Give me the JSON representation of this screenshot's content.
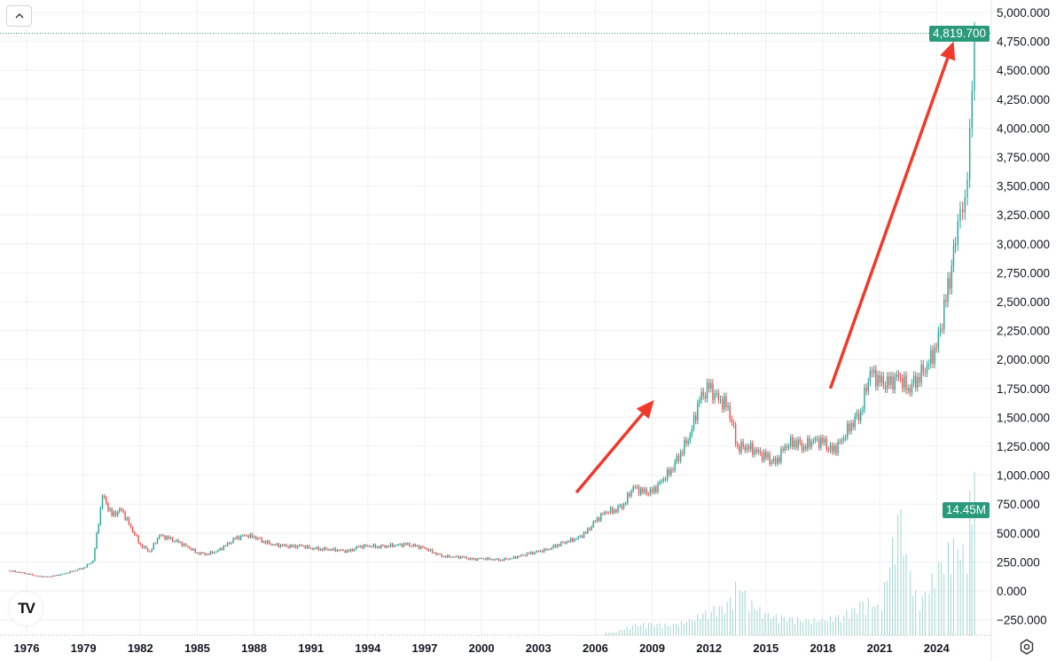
{
  "chart_data": {
    "type": "candlestick",
    "title": "",
    "xlabel": "",
    "ylabel": "",
    "x_ticks": [
      "1976",
      "1979",
      "1982",
      "1985",
      "1988",
      "1991",
      "1994",
      "1997",
      "2000",
      "2003",
      "2006",
      "2009",
      "2012",
      "2015",
      "2018",
      "2021",
      "2024"
    ],
    "y_ticks": [
      "5,000.000",
      "4,750.000",
      "4,500.000",
      "4,250.000",
      "4,000.000",
      "3,750.000",
      "3,500.000",
      "3,250.000",
      "3,000.000",
      "2,750.000",
      "2,500.000",
      "2,250.000",
      "2,000.000",
      "1,750.000",
      "1,500.000",
      "1,250.000",
      "1,000.000",
      "750.000",
      "500.000",
      "250.000",
      "0.000",
      "−250.000"
    ],
    "y_tick_values": [
      5000000,
      4750000,
      4500000,
      4250000,
      4000000,
      3750000,
      3500000,
      3250000,
      3000000,
      2750000,
      2500000,
      2250000,
      2000000,
      1750000,
      1500000,
      1250000,
      1000000,
      750000,
      500000,
      250000,
      0,
      -250000
    ],
    "ylim": [
      -300000,
      5100000
    ],
    "xlim": [
      1974.6,
      2026.6
    ],
    "grid": true,
    "last_price_label": "4,819.700",
    "last_price": 4819700,
    "volume_label": "14.45M",
    "colors": {
      "up": "#26a69a",
      "down": "#ef5350",
      "price_tag": "#2a9a7c",
      "volume": "#9fd6cf",
      "arrow": "#f0392b"
    },
    "series": [
      {
        "x": 1975.0,
        "close": 176000
      },
      {
        "x": 1975.5,
        "close": 165000
      },
      {
        "x": 1976.0,
        "close": 150000
      },
      {
        "x": 1976.5,
        "close": 130000
      },
      {
        "x": 1977.0,
        "close": 120000
      },
      {
        "x": 1977.5,
        "close": 130000
      },
      {
        "x": 1978.0,
        "close": 150000
      },
      {
        "x": 1978.5,
        "close": 175000
      },
      {
        "x": 1979.0,
        "close": 200000
      },
      {
        "x": 1979.5,
        "close": 260000
      },
      {
        "x": 1980.0,
        "close": 820000
      },
      {
        "x": 1980.5,
        "close": 650000
      },
      {
        "x": 1981.0,
        "close": 700000
      },
      {
        "x": 1981.5,
        "close": 550000
      },
      {
        "x": 1982.0,
        "close": 400000
      },
      {
        "x": 1982.5,
        "close": 340000
      },
      {
        "x": 1983.0,
        "close": 480000
      },
      {
        "x": 1983.5,
        "close": 450000
      },
      {
        "x": 1984.0,
        "close": 420000
      },
      {
        "x": 1984.5,
        "close": 380000
      },
      {
        "x": 1985.0,
        "close": 330000
      },
      {
        "x": 1985.5,
        "close": 320000
      },
      {
        "x": 1986.0,
        "close": 340000
      },
      {
        "x": 1986.5,
        "close": 390000
      },
      {
        "x": 1987.0,
        "close": 450000
      },
      {
        "x": 1987.5,
        "close": 480000
      },
      {
        "x": 1988.0,
        "close": 470000
      },
      {
        "x": 1988.5,
        "close": 430000
      },
      {
        "x": 1989.0,
        "close": 400000
      },
      {
        "x": 1989.5,
        "close": 390000
      },
      {
        "x": 1990.0,
        "close": 380000
      },
      {
        "x": 1990.5,
        "close": 390000
      },
      {
        "x": 1991.0,
        "close": 370000
      },
      {
        "x": 1991.5,
        "close": 365000
      },
      {
        "x": 1992.0,
        "close": 360000
      },
      {
        "x": 1992.5,
        "close": 350000
      },
      {
        "x": 1993.0,
        "close": 340000
      },
      {
        "x": 1993.5,
        "close": 380000
      },
      {
        "x": 1994.0,
        "close": 390000
      },
      {
        "x": 1994.5,
        "close": 385000
      },
      {
        "x": 1995.0,
        "close": 390000
      },
      {
        "x": 1995.5,
        "close": 395000
      },
      {
        "x": 1996.0,
        "close": 400000
      },
      {
        "x": 1996.5,
        "close": 385000
      },
      {
        "x": 1997.0,
        "close": 370000
      },
      {
        "x": 1997.5,
        "close": 330000
      },
      {
        "x": 1998.0,
        "close": 300000
      },
      {
        "x": 1998.5,
        "close": 295000
      },
      {
        "x": 1999.0,
        "close": 290000
      },
      {
        "x": 1999.5,
        "close": 270000
      },
      {
        "x": 2000.0,
        "close": 280000
      },
      {
        "x": 2000.5,
        "close": 275000
      },
      {
        "x": 2001.0,
        "close": 270000
      },
      {
        "x": 2001.5,
        "close": 280000
      },
      {
        "x": 2002.0,
        "close": 300000
      },
      {
        "x": 2002.5,
        "close": 320000
      },
      {
        "x": 2003.0,
        "close": 340000
      },
      {
        "x": 2003.5,
        "close": 360000
      },
      {
        "x": 2004.0,
        "close": 400000
      },
      {
        "x": 2004.5,
        "close": 430000
      },
      {
        "x": 2005.0,
        "close": 450000
      },
      {
        "x": 2005.5,
        "close": 500000
      },
      {
        "x": 2006.0,
        "close": 600000
      },
      {
        "x": 2006.5,
        "close": 680000
      },
      {
        "x": 2007.0,
        "close": 700000
      },
      {
        "x": 2007.5,
        "close": 750000
      },
      {
        "x": 2008.0,
        "close": 900000
      },
      {
        "x": 2008.5,
        "close": 850000
      },
      {
        "x": 2009.0,
        "close": 850000
      },
      {
        "x": 2009.5,
        "close": 950000
      },
      {
        "x": 2010.0,
        "close": 1050000
      },
      {
        "x": 2010.5,
        "close": 1200000
      },
      {
        "x": 2011.0,
        "close": 1350000
      },
      {
        "x": 2011.5,
        "close": 1650000
      },
      {
        "x": 2012.0,
        "close": 1750000
      },
      {
        "x": 2012.5,
        "close": 1650000
      },
      {
        "x": 2013.0,
        "close": 1600000
      },
      {
        "x": 2013.5,
        "close": 1250000
      },
      {
        "x": 2014.0,
        "close": 1250000
      },
      {
        "x": 2014.5,
        "close": 1200000
      },
      {
        "x": 2015.0,
        "close": 1150000
      },
      {
        "x": 2015.5,
        "close": 1100000
      },
      {
        "x": 2016.0,
        "close": 1250000
      },
      {
        "x": 2016.5,
        "close": 1300000
      },
      {
        "x": 2017.0,
        "close": 1250000
      },
      {
        "x": 2017.5,
        "close": 1300000
      },
      {
        "x": 2018.0,
        "close": 1280000
      },
      {
        "x": 2018.5,
        "close": 1200000
      },
      {
        "x": 2019.0,
        "close": 1300000
      },
      {
        "x": 2019.5,
        "close": 1450000
      },
      {
        "x": 2020.0,
        "close": 1550000
      },
      {
        "x": 2020.5,
        "close": 1900000
      },
      {
        "x": 2021.0,
        "close": 1800000
      },
      {
        "x": 2021.5,
        "close": 1780000
      },
      {
        "x": 2022.0,
        "close": 1850000
      },
      {
        "x": 2022.5,
        "close": 1750000
      },
      {
        "x": 2023.0,
        "close": 1850000
      },
      {
        "x": 2023.5,
        "close": 1950000
      },
      {
        "x": 2024.0,
        "close": 2100000
      },
      {
        "x": 2024.5,
        "close": 2500000
      },
      {
        "x": 2025.0,
        "close": 3000000
      },
      {
        "x": 2025.25,
        "close": 3300000
      },
      {
        "x": 2025.5,
        "close": 3400000
      },
      {
        "x": 2025.75,
        "close": 4000000
      },
      {
        "x": 2026.0,
        "close": 4819700
      }
    ],
    "volume": [
      {
        "x": 2007.0,
        "value": 0.3
      },
      {
        "x": 2008.0,
        "value": 1.0
      },
      {
        "x": 2009.0,
        "value": 1.2
      },
      {
        "x": 2010.0,
        "value": 1.0
      },
      {
        "x": 2011.0,
        "value": 1.5
      },
      {
        "x": 2012.0,
        "value": 2.5
      },
      {
        "x": 2013.0,
        "value": 3.0
      },
      {
        "x": 2013.5,
        "value": 5.5
      },
      {
        "x": 2014.0,
        "value": 3.5
      },
      {
        "x": 2015.0,
        "value": 2.0
      },
      {
        "x": 2016.0,
        "value": 1.8
      },
      {
        "x": 2017.0,
        "value": 1.5
      },
      {
        "x": 2018.0,
        "value": 1.5
      },
      {
        "x": 2019.0,
        "value": 2.0
      },
      {
        "x": 2020.0,
        "value": 3.0
      },
      {
        "x": 2020.5,
        "value": 3.5
      },
      {
        "x": 2021.0,
        "value": 2.5
      },
      {
        "x": 2022.0,
        "value": 12.0
      },
      {
        "x": 2022.5,
        "value": 7.0
      },
      {
        "x": 2023.0,
        "value": 3.0
      },
      {
        "x": 2023.5,
        "value": 4.5
      },
      {
        "x": 2024.0,
        "value": 6.5
      },
      {
        "x": 2024.5,
        "value": 8.0
      },
      {
        "x": 2025.0,
        "value": 9.5
      },
      {
        "x": 2025.5,
        "value": 7.5
      },
      {
        "x": 2025.75,
        "value": 13.5
      },
      {
        "x": 2026.0,
        "value": 14.45
      }
    ],
    "annotations": [
      {
        "type": "arrow",
        "from": {
          "x": 2005.0,
          "y": 850000
        },
        "to": {
          "x": 2009.1,
          "y": 1650000
        }
      },
      {
        "type": "arrow",
        "from": {
          "x": 2018.4,
          "y": 1750000
        },
        "to": {
          "x": 2024.9,
          "y": 4750000
        }
      }
    ]
  },
  "ui": {
    "collapse_icon": "chevron-up-icon",
    "collapse_label": "^",
    "logo": "TV",
    "settings_icon": "gear-icon"
  }
}
